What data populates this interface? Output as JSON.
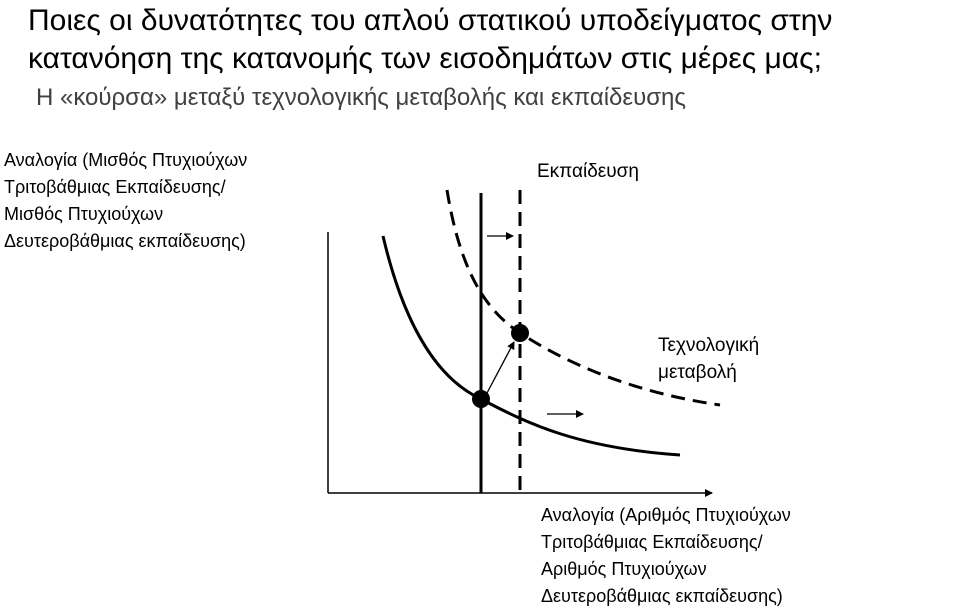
{
  "title": {
    "line1": "Ποιες οι δυνατότητες του απλού στατικού υποδείγματος στην",
    "line2": "κατανόηση της κατανομής των εισοδημάτων στις μέρες μας;"
  },
  "subtitle": "Η «κούρσα» μεταξύ τεχνολογικής μεταβολής και εκπαίδευσης",
  "y_axis_label": [
    "Αναλογία (Μισθός Πτυχιούχων",
    "Τριτοβάθμιας Εκπαίδευσης/",
    "Μισθός Πτυχιούχων",
    "Δευτεροβάθμιας εκπαίδευσης)"
  ],
  "x_axis_label": [
    "Αναλογία (Αριθμός Πτυχιούχων",
    "Τριτοβάθμιας Εκπαίδευσης/",
    "Αριθμός Πτυχιούχων",
    "Δευτεροβάθμιας εκπαίδευσης)"
  ],
  "labels": {
    "education": "Εκπαίδευση",
    "technology": [
      "Τεχνολογική",
      "μεταβολή"
    ]
  },
  "colors": {
    "ink": "#000000",
    "subtitle": "#404040"
  }
}
